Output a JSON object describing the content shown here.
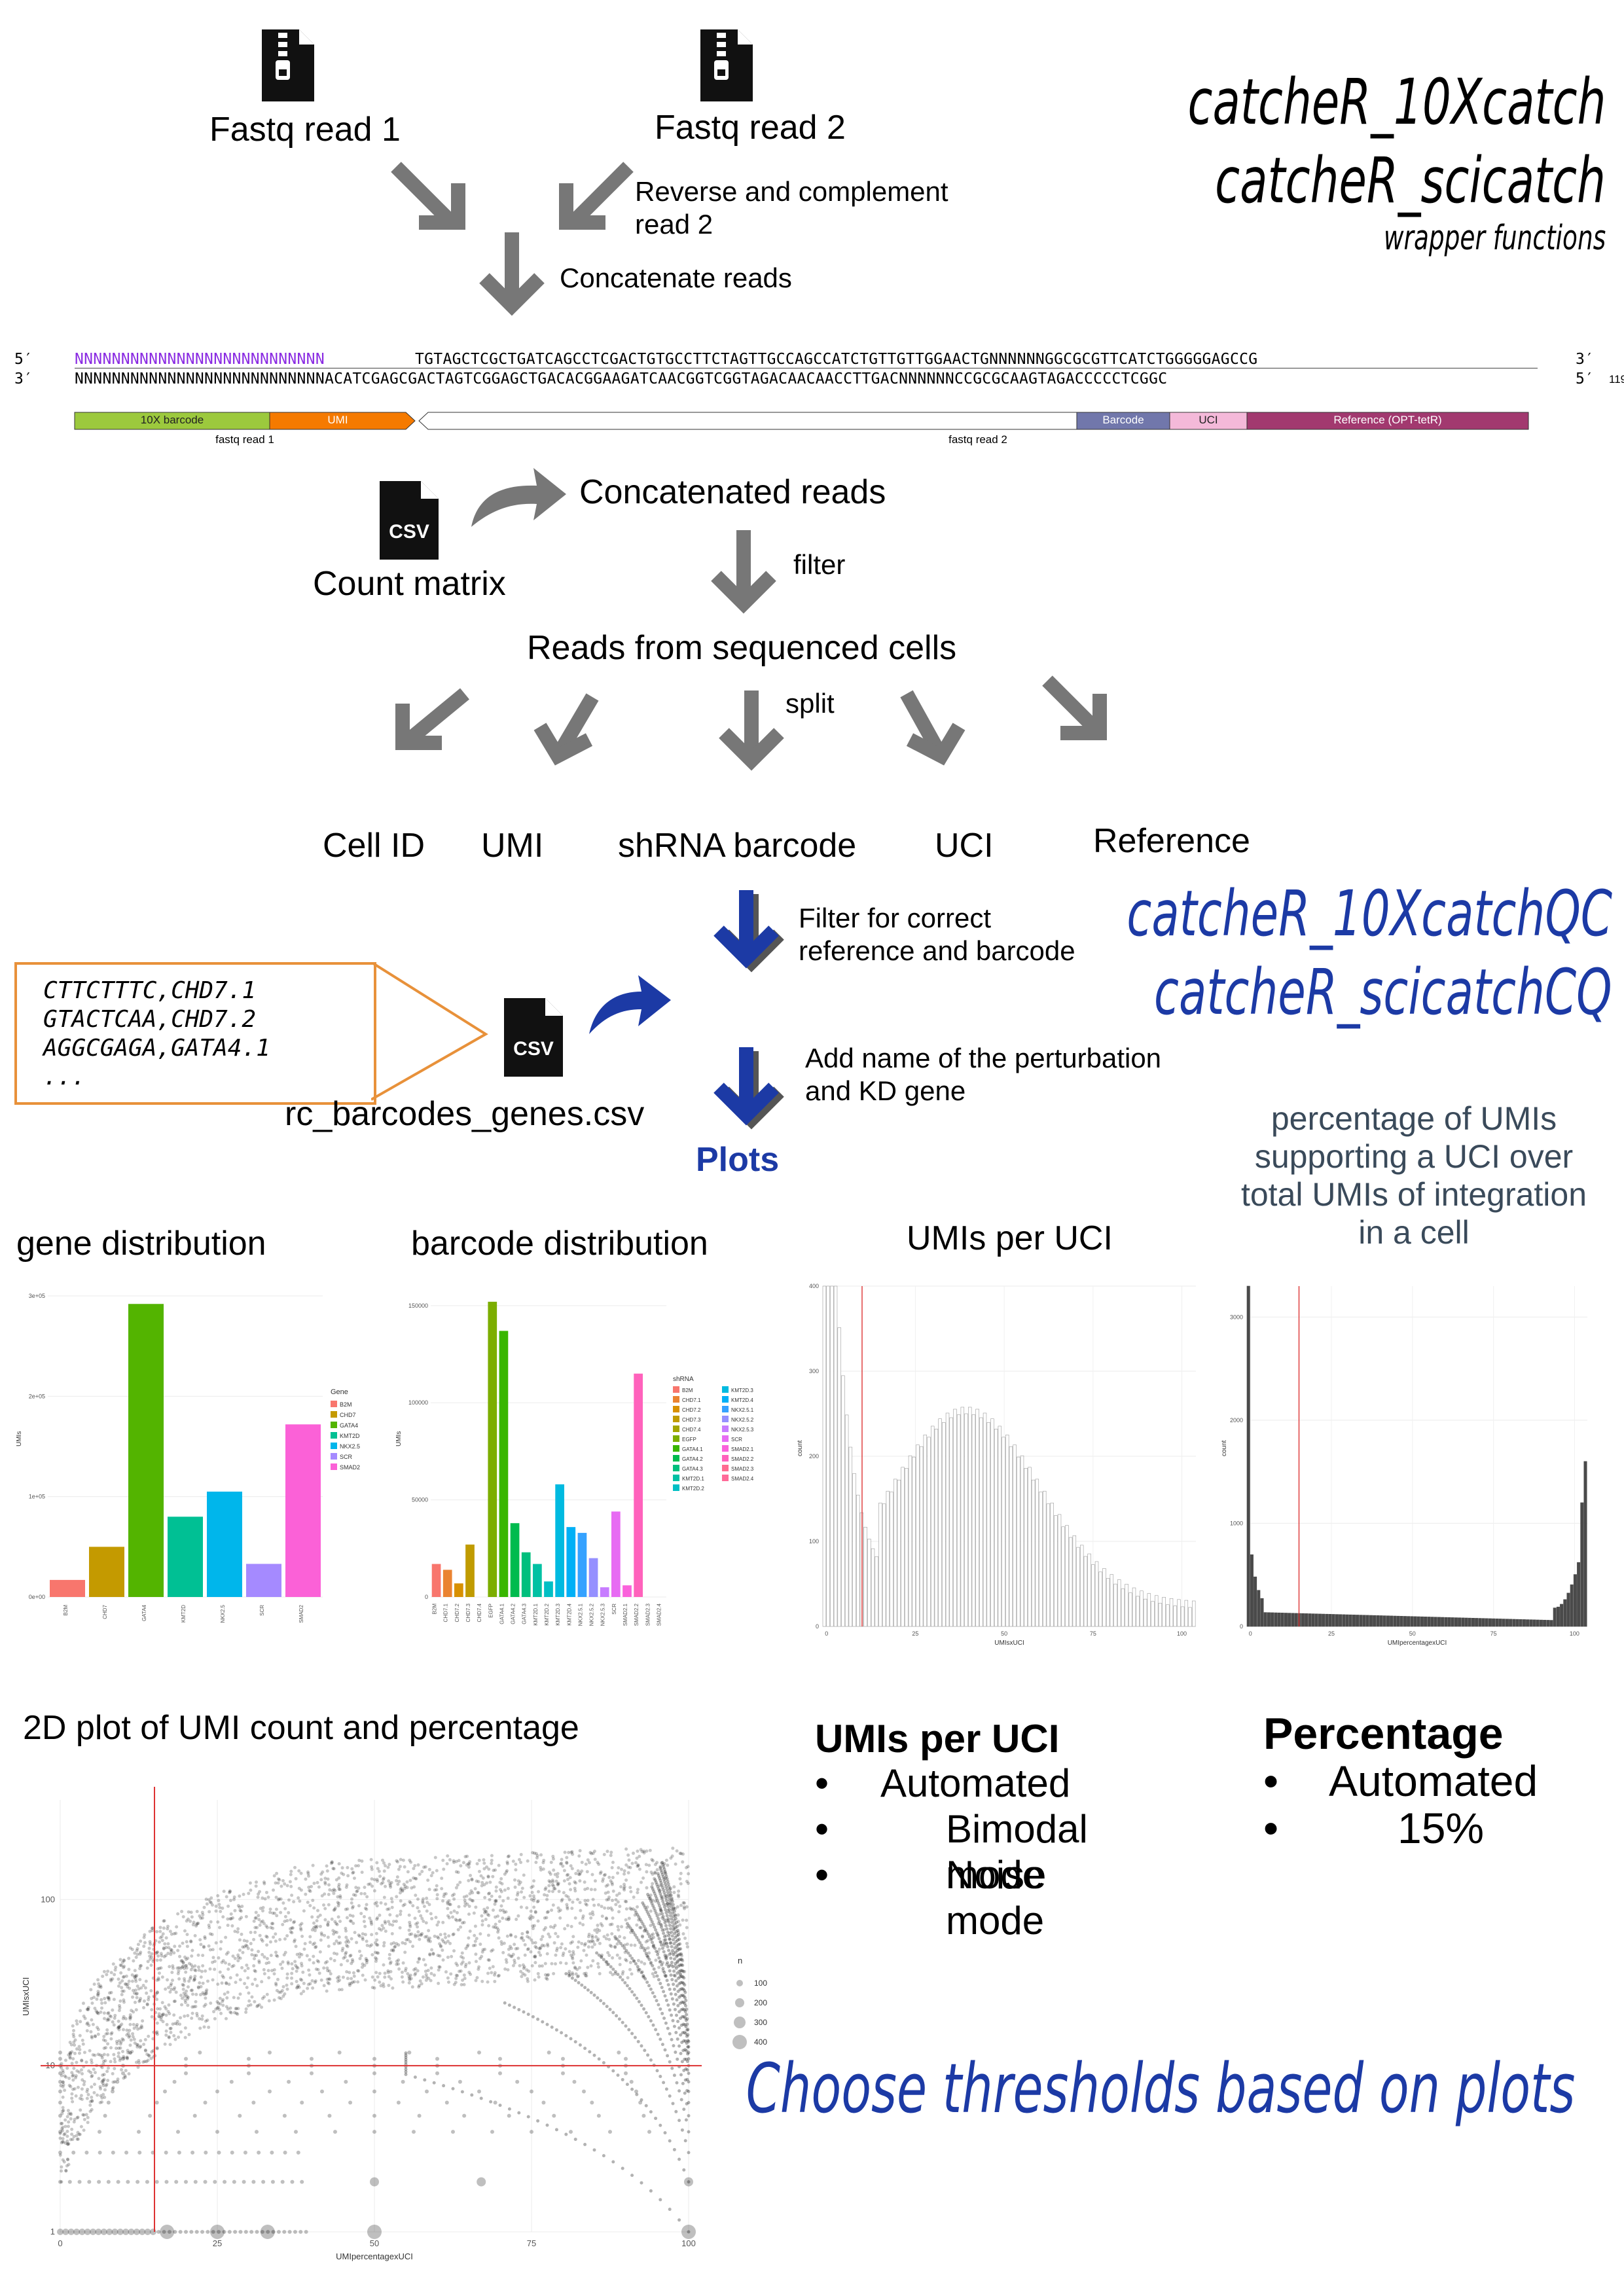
{
  "titles": {
    "main_line1": "catcheR_10Xcatch",
    "main_line2": "catcheR_scicatch",
    "main_sub": "wrapper functions",
    "qc_line1": "catcheR_10XcatchQC",
    "qc_line2": "catcheR_scicatchCQ",
    "choose": "Choose thresholds based on plots"
  },
  "top": {
    "fastq1": "Fastq read 1",
    "fastq2": "Fastq read 2",
    "reverse": "Reverse and complement",
    "reverse2": "read 2",
    "concatenate": "Concatenate reads"
  },
  "sequence": {
    "five_prime": "5′",
    "three_prime": "3′",
    "top_n": "NNNNNNNNNNNNNNNNNNNNNNNNNNN",
    "top_rest": "TGTAGCTCGCTGATCAGCCTCGACTGTGCCTTCTAGTTGCCAGCCATCTGTTGTTGGAACTGNNNNNNGGCGCGTTCATCTGGGGGAGCCG",
    "bottom": "NNNNNNNNNNNNNNNNNNNNNNNNNNNACATCGAGCGACTAGTCGGAGCTGACACGGAAGATCAACGGTCGGTAGACAACAACCTTGACNNNNNNCCGCGCAAGTAGACCCCCTCGGC",
    "length": "119",
    "features": [
      "10X barcode",
      "UMI",
      "Barcode",
      "UCI",
      "Reference (OPT-tetR)"
    ],
    "read_labels": [
      "fastq read 1",
      "fastq read 2"
    ]
  },
  "flow": {
    "concatenated": "Concatenated reads",
    "count_matrix": "Count matrix",
    "filter": "filter",
    "reads_cells": "Reads from sequenced cells",
    "split": "split",
    "outputs": [
      "Cell ID",
      "UMI",
      "shRNA barcode",
      "UCI",
      "Reference"
    ],
    "filter_correct_1": "Filter for correct",
    "filter_correct_2": "reference and barcode",
    "add_name_1": "Add name of the perturbation",
    "add_name_2": "and KD gene",
    "plots": "Plots",
    "csv_file": "rc_barcodes_genes.csv",
    "csv_lines": [
      "CTTCTTTC,CHD7.1",
      "GTACTCAA,CHD7.2",
      "AGGCGAGA,GATA4.1",
      "..."
    ],
    "csv_icon": "CSV"
  },
  "plot_titles": {
    "gene": "gene distribution",
    "barcode": "barcode distribution",
    "umis": "UMIs per UCI",
    "pct_1": "percentage of UMIs",
    "pct_2": "supporting a UCI over",
    "pct_3": "total UMIs of integration",
    "pct_4": "in a cell",
    "twod": "2D plot of UMI count and percentage"
  },
  "gene_chart": {
    "type": "bar",
    "ylabel": "UMIs",
    "yticks": [
      "0e+00",
      "1e+05",
      "2e+05",
      "3e+05"
    ],
    "legend_title": "Gene",
    "categories": [
      "B2M",
      "CHD7",
      "GATA4",
      "KMT2D",
      "NKX2.5",
      "SCR",
      "SMAD2"
    ],
    "values": [
      17000,
      50000,
      292000,
      80000,
      105000,
      33000,
      172000
    ],
    "colors": [
      "#f8766d",
      "#c49a00",
      "#53b400",
      "#00c094",
      "#00b6eb",
      "#a58aff",
      "#fb61d7"
    ]
  },
  "barcode_chart": {
    "type": "bar",
    "ylabel": "UMIs",
    "yticks": [
      "0",
      "50000",
      "100000",
      "150000"
    ],
    "legend_title": "shRNA",
    "categories": [
      "B2M",
      "CHD7.1",
      "CHD7.2",
      "CHD7.3",
      "CHD7.4",
      "EGFP",
      "GATA4.1",
      "GATA4.2",
      "GATA4.3",
      "KMT2D.1",
      "KMT2D.2",
      "KMT2D.3",
      "KMT2D.4",
      "NKX2.5.1",
      "NKX2.5.2",
      "NKX2.5.3",
      "SCR",
      "SMAD2.1",
      "SMAD2.2",
      "SMAD2.3",
      "SMAD2.4"
    ],
    "values": [
      17000,
      14000,
      7000,
      27000,
      0,
      152000,
      137000,
      38000,
      23000,
      17000,
      8000,
      58000,
      36000,
      33000,
      20000,
      5000,
      44000,
      6000,
      115000,
      0,
      0
    ],
    "colors": [
      "#f8766d",
      "#ea8331",
      "#d89000",
      "#c09b00",
      "#a3a500",
      "#7cae00",
      "#39b600",
      "#00bb4e",
      "#00bf7d",
      "#00c1a3",
      "#00bfc4",
      "#00bae0",
      "#00b0f6",
      "#35a2ff",
      "#9590ff",
      "#c77cff",
      "#e76bf3",
      "#fa62db",
      "#ff62bc",
      "#ff6c91",
      "#ff6a98"
    ]
  },
  "umi_hist": {
    "type": "bar",
    "xlabel": "UMIsxUCI",
    "ylabel": "count",
    "xticks": [
      "0",
      "25",
      "50",
      "75",
      "100"
    ],
    "yticks": [
      "0",
      "100",
      "200",
      "300",
      "400"
    ],
    "threshold": 10
  },
  "pct_hist": {
    "type": "bar",
    "xlabel": "UMIpercentagexUCI",
    "ylabel": "count",
    "xticks": [
      "0",
      "25",
      "50",
      "75",
      "100"
    ],
    "yticks": [
      "0",
      "1000",
      "2000",
      "3000"
    ],
    "threshold": 15
  },
  "scatter": {
    "type": "scatter",
    "xlabel": "UMIpercentagexUCI",
    "ylabel": "UMIsxUCI",
    "xticks": [
      "0",
      "25",
      "50",
      "75",
      "100"
    ],
    "yticks": [
      "1",
      "10",
      "100"
    ],
    "size_legend_title": "n",
    "size_legend": [
      "100",
      "200",
      "300",
      "400"
    ],
    "threshold_x": 15,
    "threshold_y": 10
  },
  "modes": {
    "umi_title": "UMIs per UCI",
    "umi_items": [
      "Automated",
      "Bimodal mode",
      "Noise mode"
    ],
    "pct_title": "Percentage",
    "pct_items": [
      "Automated",
      "15%"
    ],
    "bullet": "•"
  }
}
